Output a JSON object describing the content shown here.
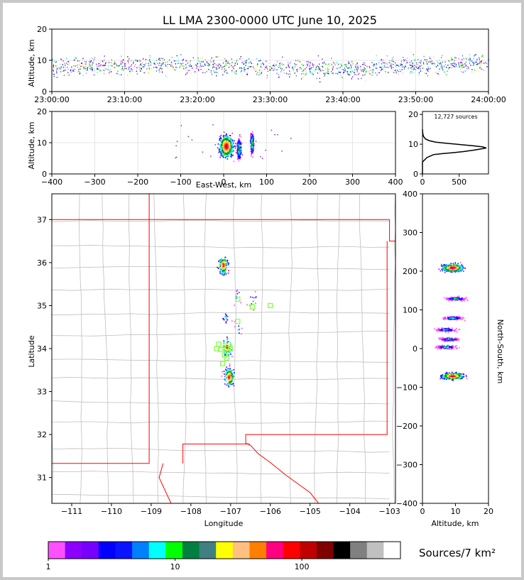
{
  "title": "LL LMA 2300-0000 UTC June 10, 2025",
  "colors": {
    "colorbar": [
      "#ff50ff",
      "#8c00ff",
      "#7800ff",
      "#0000ff",
      "#0a14ff",
      "#0080ff",
      "#00ffff",
      "#00ff00",
      "#008040",
      "#408080",
      "#ffff00",
      "#ffc080",
      "#ff8000",
      "#ff0080",
      "#ff0000",
      "#c00000",
      "#800000",
      "#000000",
      "#808080",
      "#c0c0c0",
      "#ffffff"
    ],
    "state_line": "#ff0000",
    "county_line": "#bfbfbf",
    "station": "#7dff3d"
  },
  "colorbar": {
    "label": "Sources/7 km²",
    "ticks": [
      "1",
      "10",
      "100"
    ],
    "tick_values": [
      1,
      10,
      100
    ],
    "max": 600
  },
  "chart_data": [
    {
      "id": "time-altitude",
      "type": "scatter",
      "ylabel": "Altitude, km",
      "xlabel": "",
      "ylim": [
        0,
        20
      ],
      "yticks": [
        "0",
        "10",
        "20"
      ],
      "xticks": [
        "23:00:00",
        "23:10:00",
        "23:20:00",
        "23:30:00",
        "23:40:00",
        "23:50:00",
        "24:00:00"
      ],
      "xrange_minutes": [
        0,
        60
      ],
      "altitude_band_km": [
        5,
        13
      ],
      "grid": true
    },
    {
      "id": "ew-altitude",
      "type": "scatter",
      "xlabel": "East-West, km",
      "ylabel": "Altitude, km",
      "xlim": [
        -400,
        400
      ],
      "ylim": [
        0,
        20
      ],
      "xticks": [
        "−400",
        "−300",
        "−200",
        "−100",
        "0",
        "100",
        "200",
        "300",
        "400"
      ],
      "yticks": [
        "0",
        "10",
        "20"
      ],
      "clusters_km": [
        {
          "x": 5,
          "z": 9,
          "spread": 25
        },
        {
          "x": 35,
          "z": 8,
          "spread": 8
        },
        {
          "x": 65,
          "z": 10,
          "spread": 6
        }
      ],
      "grid": true
    },
    {
      "id": "altitude-histogram",
      "type": "line",
      "annotation": "12,727 sources",
      "xlim": [
        0,
        900
      ],
      "ylim": [
        0,
        21
      ],
      "xticks": [
        "0",
        "500"
      ],
      "yticks": [
        "0",
        "10",
        "20"
      ],
      "points": [
        [
          0,
          0
        ],
        [
          0,
          4
        ],
        [
          60,
          5.5
        ],
        [
          150,
          6.5
        ],
        [
          260,
          6.8
        ],
        [
          400,
          7.1
        ],
        [
          550,
          7.5
        ],
        [
          700,
          8
        ],
        [
          800,
          8.4
        ],
        [
          870,
          8.7
        ],
        [
          820,
          9.1
        ],
        [
          680,
          9.5
        ],
        [
          500,
          9.9
        ],
        [
          320,
          10.3
        ],
        [
          180,
          10.7
        ],
        [
          90,
          11.2
        ],
        [
          40,
          11.8
        ],
        [
          15,
          12.6
        ],
        [
          5,
          13.5
        ],
        [
          0,
          15
        ]
      ]
    },
    {
      "id": "plan-view",
      "type": "scatter",
      "xlabel": "Longitude",
      "ylabel": "Latitude",
      "xlim": [
        -111.5,
        -102.85
      ],
      "ylim": [
        30.4,
        37.6
      ],
      "xticks": [
        "−111",
        "−110",
        "−109",
        "−108",
        "−107",
        "−106",
        "−105",
        "−104",
        "−103"
      ],
      "yticks": [
        "31",
        "32",
        "33",
        "34",
        "35",
        "36",
        "37"
      ],
      "clusters": [
        {
          "lon": -107.05,
          "lat": 33.35,
          "n": 160
        },
        {
          "lon": -107.1,
          "lat": 34.05,
          "n": 70
        },
        {
          "lon": -107.15,
          "lat": 34.72,
          "n": 15
        },
        {
          "lon": -107.2,
          "lat": 35.95,
          "n": 140
        },
        {
          "lon": -106.45,
          "lat": 35.17,
          "n": 12
        },
        {
          "lon": -106.85,
          "lat": 35.22,
          "n": 8
        },
        {
          "lon": -106.82,
          "lat": 34.45,
          "n": 10
        }
      ],
      "stations": [
        [
          -107.3,
          34.1
        ],
        [
          -107.35,
          34.0
        ],
        [
          -107.25,
          33.98
        ],
        [
          -107.15,
          33.85
        ],
        [
          -107.2,
          33.65
        ],
        [
          -107.1,
          33.78
        ],
        [
          -107.0,
          34.0
        ],
        [
          -106.82,
          34.63
        ],
        [
          -106.82,
          35.15
        ],
        [
          -106.45,
          34.97
        ],
        [
          -106.0,
          35.0
        ],
        [
          -107.1,
          34.0
        ]
      ]
    },
    {
      "id": "altitude-ns",
      "type": "scatter",
      "xlabel": "Altitude, km",
      "ylabel": "North-South, km",
      "xlim": [
        0,
        20
      ],
      "ylim": [
        -400,
        400
      ],
      "xticks": [
        "0",
        "10",
        "20"
      ],
      "yticks": [
        "−400",
        "−300",
        "−200",
        "−100",
        "0",
        "100",
        "200",
        "300",
        "400"
      ],
      "clusters_km": [
        {
          "ns": -70,
          "z": 9
        },
        {
          "ns": 5,
          "z": 7
        },
        {
          "ns": 25,
          "z": 8
        },
        {
          "ns": 50,
          "z": 7
        },
        {
          "ns": 80,
          "z": 9
        },
        {
          "ns": 130,
          "z": 10
        },
        {
          "ns": 210,
          "z": 9
        }
      ]
    }
  ]
}
